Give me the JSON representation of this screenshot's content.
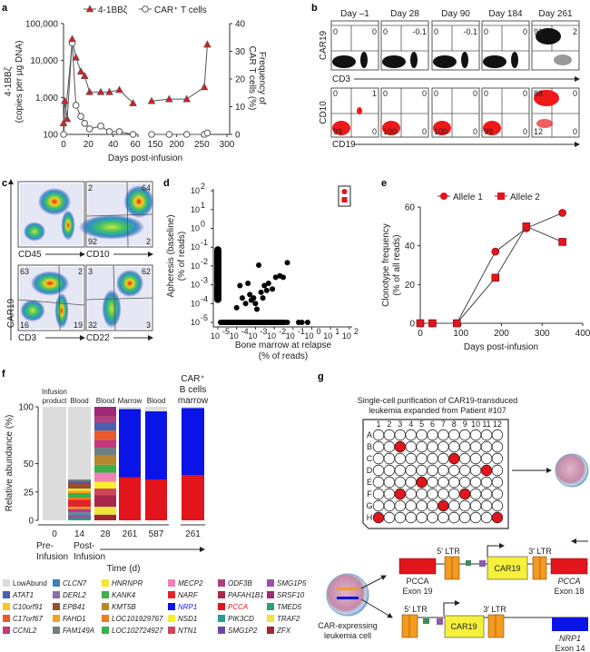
{
  "panel_labels": [
    "a",
    "b",
    "c",
    "d",
    "e",
    "f",
    "g"
  ],
  "colors": {
    "red": "#e2141c",
    "blue": "#0a14e6",
    "lowabund": "#dddddd",
    "orange": "#f39a1f",
    "yellow": "#f5f03a",
    "green": "#3a8a5a",
    "purple": "#8a5ba8",
    "cell": "#cf9fb8"
  },
  "chart_data": [
    {
      "panel": "a",
      "type": "line",
      "xlabel": "Days post-infusion",
      "ylabel": "4-1BBζ (copies per µg DNA)",
      "ylabel_lines": [
        "4-1BBζ",
        "(copies per µg DNA)"
      ],
      "y2label": "Frequency of CAR T cells (%)",
      "y2label_lines": [
        "Frequency of",
        "CAR T cells (%)"
      ],
      "x_segments": [
        [
          0,
          60
        ],
        [
          150,
          300
        ]
      ],
      "x_ticks": [
        0,
        20,
        40,
        60,
        150,
        200,
        250,
        300
      ],
      "y_scale": "log",
      "ylim": [
        100,
        100000
      ],
      "y_ticks": [
        "100",
        "1,000",
        "10,000",
        "100,000"
      ],
      "y2lim": [
        0,
        40
      ],
      "y2_ticks": [
        0,
        10,
        20,
        30,
        40
      ],
      "legend_position": "top",
      "series": [
        {
          "name": "4-1BBζ",
          "axis": "left",
          "marker": "triangle",
          "x": [
            0,
            1,
            3,
            7,
            10,
            14,
            17,
            21,
            30,
            37,
            45,
            56,
            150,
            185,
            220,
            255,
            261
          ],
          "y": [
            200,
            800,
            260,
            38000,
            12000,
            5000,
            3800,
            1400,
            1400,
            1400,
            1600,
            700,
            800,
            900,
            900,
            1900,
            27000
          ]
        },
        {
          "name": "CAR⁺ T cells",
          "axis": "right",
          "marker": "circle-open",
          "x": [
            0,
            7,
            10,
            14,
            17,
            21,
            30,
            37,
            45,
            56,
            150,
            185,
            220,
            255,
            261
          ],
          "y": [
            0,
            33,
            10.5,
            6.5,
            4,
            2,
            3,
            1,
            1,
            0,
            0,
            0,
            0,
            0,
            0.5
          ]
        }
      ]
    },
    {
      "panel": "d",
      "type": "scatter",
      "xlabel": "Bone marrow at relapse",
      "xlabel2": "(% of reads)",
      "ylabel": "Apheresis (baseline)",
      "ylabel2": "(% of reads)",
      "x_scale": "log",
      "y_scale": "log",
      "xlim": [
        1e-05,
        100
      ],
      "ylim": [
        1e-05,
        100
      ],
      "tick_exponents": [
        -5,
        -4,
        -3,
        -2,
        -1,
        0,
        1,
        2
      ],
      "points": [
        [
          1e-05,
          0.08
        ],
        [
          1e-05,
          0.05
        ],
        [
          1e-05,
          0.02
        ],
        [
          1e-05,
          0.01
        ],
        [
          1e-05,
          0.005
        ],
        [
          1e-05,
          0.002
        ],
        [
          1e-05,
          0.001
        ],
        [
          1e-05,
          0.0005
        ],
        [
          1e-05,
          0.0003
        ],
        [
          1e-05,
          0.00015
        ],
        [
          3e-05,
          1e-05
        ],
        [
          0.0001,
          1e-05
        ],
        [
          0.0003,
          1e-05
        ],
        [
          0.001,
          1e-05
        ],
        [
          0.003,
          1e-05
        ],
        [
          0.01,
          1e-05
        ],
        [
          0.03,
          1e-05
        ],
        [
          0.05,
          1e-05
        ],
        [
          0.2,
          1e-05
        ],
        [
          0.3,
          1e-05
        ],
        [
          0.6,
          1e-05
        ],
        [
          0.0001,
          6e-05
        ],
        [
          0.00015,
          0.0009
        ],
        [
          0.0002,
          0.0002
        ],
        [
          0.0003,
          0.0001
        ],
        [
          0.0004,
          0.0012
        ],
        [
          0.0005,
          0.0003
        ],
        [
          0.0006,
          0.00015
        ],
        [
          0.0008,
          0.0002
        ],
        [
          0.001,
          0.0001
        ],
        [
          0.0012,
          5e-05
        ],
        [
          0.0015,
          0.011
        ],
        [
          0.002,
          0.0004
        ],
        [
          0.0025,
          0.0002
        ],
        [
          0.003,
          0.0009
        ],
        [
          0.004,
          0.0005
        ],
        [
          0.005,
          0.0012
        ],
        [
          0.008,
          0.0006
        ],
        [
          0.012,
          0.0025
        ],
        [
          0.02,
          0.003
        ],
        [
          0.03,
          0.0025
        ],
        [
          0.05,
          0.015
        ]
      ]
    },
    {
      "panel": "e",
      "type": "line",
      "xlabel": "Days post-infusion",
      "ylabel": "Clonotype frequency",
      "ylabel2": "(% of all reads)",
      "xlim": [
        0,
        400
      ],
      "ylim": [
        0,
        60
      ],
      "x_ticks": [
        0,
        100,
        200,
        300,
        400
      ],
      "y_ticks": [
        0,
        20,
        40,
        60
      ],
      "legend_position": "top",
      "series": [
        {
          "name": "Allele 1",
          "marker": "circle",
          "x": [
            0,
            30,
            90,
            185,
            261,
            350
          ],
          "y": [
            0,
            0,
            0,
            37,
            49,
            57
          ]
        },
        {
          "name": "Allele 2",
          "marker": "square",
          "x": [
            0,
            30,
            90,
            185,
            261,
            350
          ],
          "y": [
            0,
            0,
            0,
            23.5,
            50,
            42
          ]
        }
      ]
    },
    {
      "panel": "f",
      "type": "bar",
      "stacked": true,
      "ylabel": "Relative abundance (%)",
      "xlabel": "Time (d)",
      "ylim": [
        0,
        100
      ],
      "y_ticks": [
        0,
        25,
        50,
        100
      ],
      "y_tick_labels": [
        "0",
        "25",
        "50",
        "100"
      ],
      "headers": [
        [
          "Infusion",
          "product"
        ],
        [
          "Blood"
        ],
        [
          "Blood"
        ],
        [
          "Marrow"
        ],
        [
          "Blood"
        ],
        [
          "CAR⁺",
          "B cells",
          "marrow"
        ]
      ],
      "categories": [
        "0",
        "14",
        "28",
        "261",
        "587",
        "261"
      ],
      "phase_labels": [
        [
          "Pre-",
          "Infusion"
        ],
        [
          "Post-",
          "Infusion"
        ]
      ],
      "bars": [
        [
          [
            "LowAbund",
            100
          ]
        ],
        [
          [
            "TMED5",
            2
          ],
          [
            "SMG1P5",
            3
          ],
          [
            "PIK3CD",
            2
          ],
          [
            "CCNL2",
            3
          ],
          [
            "FAHD1",
            2
          ],
          [
            "NARF",
            6
          ],
          [
            "LOC101929767",
            2
          ],
          [
            "KANK4",
            4
          ],
          [
            "FAHD1",
            2
          ],
          [
            "TRAF2",
            2
          ],
          [
            "EPB41",
            4
          ],
          [
            "SMG1P2",
            2
          ],
          [
            "FAM149A",
            2
          ],
          [
            "LowAbund",
            64
          ]
        ],
        [
          [
            "ZFX",
            5
          ],
          [
            "TRAF2",
            7
          ],
          [
            "PAFAH1B1",
            10
          ],
          [
            "NTN1",
            6
          ],
          [
            "NSD1",
            6
          ],
          [
            "MECP2",
            8
          ],
          [
            "LOC102724927",
            7
          ],
          [
            "KMT5B",
            8
          ],
          [
            "FAM149A",
            7
          ],
          [
            "CCNL2",
            7
          ],
          [
            "C17orf67",
            8
          ],
          [
            "ATAT1",
            7
          ],
          [
            "ODF3B",
            6
          ],
          [
            "SRSF10",
            8
          ]
        ],
        [
          [
            "PCCA",
            38
          ],
          [
            "NRP1",
            60
          ],
          [
            "LowAbund",
            2
          ]
        ],
        [
          [
            "PCCA",
            36
          ],
          [
            "NRP1",
            60
          ],
          [
            "LowAbund",
            4
          ]
        ],
        [
          [
            "PCCA",
            40
          ],
          [
            "NRP1",
            59
          ],
          [
            "LowAbund",
            1
          ]
        ]
      ],
      "legend": [
        {
          "name": "LowAbund",
          "color": "#dcdcdc",
          "italic": false
        },
        {
          "name": "ATAT1",
          "color": "#4a5fb0"
        },
        {
          "name": "C10orf91",
          "color": "#f7c71c"
        },
        {
          "name": "C17orf67",
          "color": "#e95a2b"
        },
        {
          "name": "CCNL2",
          "color": "#c4387e"
        },
        {
          "name": "CLCN7",
          "color": "#3a7fc0"
        },
        {
          "name": "DERL2",
          "color": "#8e6bb0"
        },
        {
          "name": "EPB41",
          "color": "#9a4f2a"
        },
        {
          "name": "FAHD1",
          "color": "#f2a126"
        },
        {
          "name": "FAM149A",
          "color": "#6f7f80"
        },
        {
          "name": "HNRNPR",
          "color": "#f5e633"
        },
        {
          "name": "KANK4",
          "color": "#3fae4a"
        },
        {
          "name": "KMT5B",
          "color": "#b8862e"
        },
        {
          "name": "LOC101929767",
          "color": "#ee7a22"
        },
        {
          "name": "LOC102724927",
          "color": "#3bb04b"
        },
        {
          "name": "MECP2",
          "color": "#ee82b4"
        },
        {
          "name": "NARF",
          "color": "#e3232b"
        },
        {
          "name": "NRP1",
          "color": "#0a14e6",
          "text_color": "#2020e0"
        },
        {
          "name": "NSD1",
          "color": "#f8ef2a"
        },
        {
          "name": "NTN1",
          "color": "#d0465a"
        },
        {
          "name": "ODF3B",
          "color": "#b0407e"
        },
        {
          "name": "PAFAH1B1",
          "color": "#a8284a"
        },
        {
          "name": "PCCA",
          "color": "#e2141c",
          "text_color": "#e2141c"
        },
        {
          "name": "PIK3CD",
          "color": "#2e9a98"
        },
        {
          "name": "SMG1P2",
          "color": "#6a4aa0"
        },
        {
          "name": "SMG1P5",
          "color": "#9a50a8"
        },
        {
          "name": "SRSF10",
          "color": "#a02878"
        },
        {
          "name": "TMED5",
          "color": "#2aa07a"
        },
        {
          "name": "TRAF2",
          "color": "#ede63a"
        },
        {
          "name": "ZFX",
          "color": "#a0282a"
        }
      ]
    }
  ],
  "panel_b": {
    "days": [
      "Day –1",
      "Day 28",
      "Day 90",
      "Day 184",
      "Day 261"
    ],
    "top_ylabel": "CAR19",
    "top_xlabel": "CD3",
    "bottom_ylabel": "CD10",
    "bottom_xlabel": "CD19",
    "top_quadrants": [
      [
        "0",
        "0"
      ],
      [
        "0",
        "-0.1"
      ],
      [
        "0",
        "-0.1"
      ],
      [
        "0",
        "0"
      ],
      [
        "91",
        "2"
      ]
    ],
    "bottom_quadrants": [
      [
        "0",
        "1",
        "99",
        "0"
      ],
      [
        "0",
        "0",
        "100",
        "0"
      ],
      [
        "0",
        "0",
        "100",
        "0"
      ],
      [
        "0",
        "0",
        "99",
        "0"
      ],
      [
        "88",
        "0",
        "12",
        "0"
      ]
    ]
  },
  "panel_c": {
    "ylabel": "CAR19",
    "xlabels": [
      "CD45",
      "CD10",
      "CD3",
      "CD22"
    ],
    "quadrants": [
      [],
      [
        "2",
        "64",
        "92",
        "2"
      ],
      [
        "63",
        "2",
        "16",
        "19"
      ],
      [
        "3",
        "62",
        "32",
        "3"
      ]
    ]
  },
  "panel_g": {
    "title": [
      "Single-cell purification of CAR19-transduced",
      "leukemia expanded from Patient #107"
    ],
    "columns": [
      "1",
      "2",
      "3",
      "4",
      "5",
      "6",
      "7",
      "8",
      "9",
      "10",
      "11",
      "12"
    ],
    "rows": [
      "A",
      "B",
      "C",
      "D",
      "E",
      "F",
      "G",
      "H"
    ],
    "positive_wells": [
      "B3",
      "C8",
      "D11",
      "E5",
      "F3",
      "F9",
      "G7",
      "H1",
      "H12"
    ],
    "cell_label": [
      "CAR-expressing",
      "leukemia cell"
    ],
    "ltr5": "5′ LTR",
    "ltr3": "3′ LTR",
    "car": "CAR19",
    "construct1_left": [
      "PCCA",
      "Exon 19"
    ],
    "construct1_right": [
      "PCCA",
      "Exon 18"
    ],
    "construct2_right": [
      "NRP1",
      "Exon 14"
    ]
  }
}
